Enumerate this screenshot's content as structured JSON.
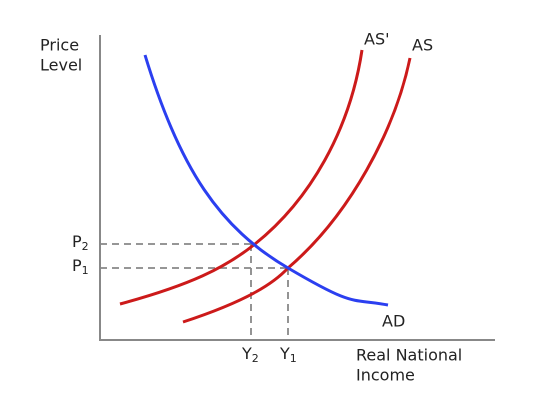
{
  "axes": {
    "y_label": [
      "Price",
      "Level"
    ],
    "x_label": [
      "Real National",
      "Income"
    ]
  },
  "curves": {
    "aggregate_supply_shifted": "AS'",
    "aggregate_supply": "AS",
    "aggregate_demand": "AD"
  },
  "price_levels": [
    {
      "base": "P",
      "sub": "2"
    },
    {
      "base": "P",
      "sub": "1"
    }
  ],
  "income_levels": [
    {
      "base": "Y",
      "sub": "2"
    },
    {
      "base": "Y",
      "sub": "1"
    }
  ]
}
